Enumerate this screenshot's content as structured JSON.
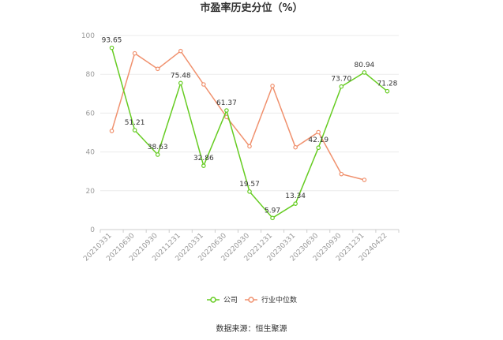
{
  "chart_data": {
    "type": "line",
    "title": "市盈率历史分位（%）",
    "categories": [
      "20210331",
      "20210630",
      "20210930",
      "20211231",
      "20220331",
      "20220630",
      "20220930",
      "20221231",
      "20230331",
      "20230630",
      "20230930",
      "20231231",
      "20240422"
    ],
    "series": [
      {
        "name": "公司",
        "color": "#66cc22",
        "values": [
          93.65,
          51.21,
          38.63,
          75.48,
          32.86,
          61.37,
          19.57,
          5.97,
          13.34,
          42.19,
          73.7,
          80.94,
          71.28
        ],
        "labels": [
          "93.65",
          "51.21",
          "38.63",
          "75.48",
          "32.86",
          "61.37",
          "19.57",
          "5.97",
          "13.34",
          "42.19",
          "73.70",
          "80.94",
          "71.28"
        ]
      },
      {
        "name": "行业中位数",
        "color": "#f0916e",
        "values": [
          50.8,
          90.8,
          82.8,
          92.0,
          74.8,
          58.0,
          42.9,
          74.0,
          42.4,
          50.2,
          28.6,
          25.6,
          null
        ]
      }
    ],
    "ylim": [
      0,
      100
    ],
    "yticks": [
      "0",
      "20",
      "40",
      "60",
      "80",
      "100"
    ],
    "grid": true,
    "legend_position": "bottom"
  },
  "source_text": "数据来源：恒生聚源"
}
